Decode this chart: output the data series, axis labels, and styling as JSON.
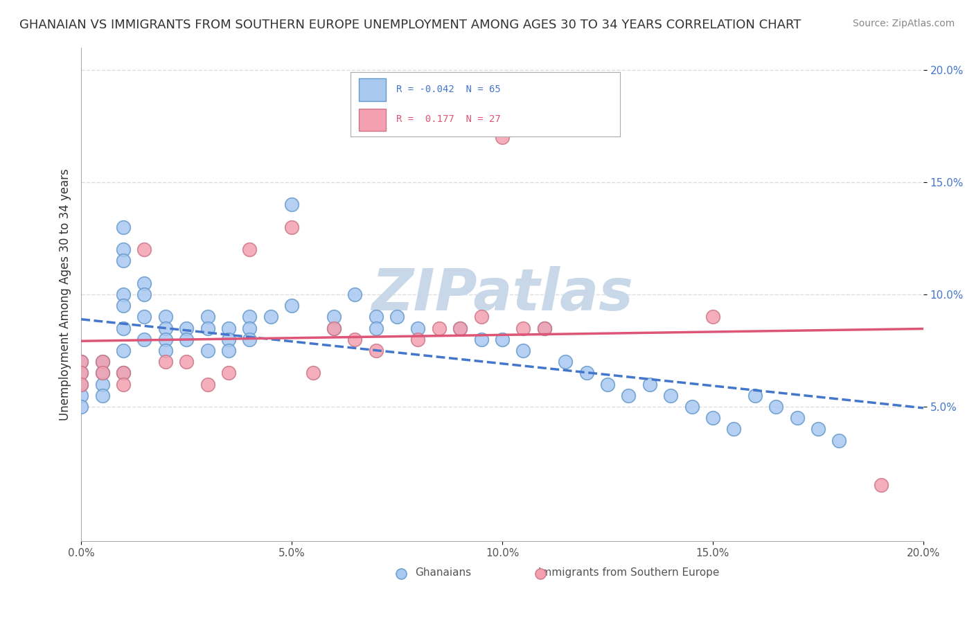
{
  "title": "GHANAIAN VS IMMIGRANTS FROM SOUTHERN EUROPE UNEMPLOYMENT AMONG AGES 30 TO 34 YEARS CORRELATION CHART",
  "source": "Source: ZipAtlas.com",
  "xlabel": "",
  "ylabel": "Unemployment Among Ages 30 to 34 years",
  "xlim": [
    0.0,
    0.2
  ],
  "ylim": [
    -0.01,
    0.21
  ],
  "xticks": [
    0.0,
    0.05,
    0.1,
    0.15,
    0.2
  ],
  "xticklabels": [
    "0.0%",
    "5.0%",
    "10.0%",
    "15.0%",
    "20.0%"
  ],
  "yticks": [
    0.05,
    0.1,
    0.15,
    0.2
  ],
  "yticklabels": [
    "5.0%",
    "10.0%",
    "15.0%",
    "20.0%"
  ],
  "legend_entries": [
    {
      "label": "R = -0.042  N = 65",
      "color": "#a8c8f0"
    },
    {
      "label": "R =  0.177  N = 27",
      "color": "#f4a0b0"
    }
  ],
  "ghanaian_color": "#a8c8f0",
  "ghanaian_edge": "#6699cc",
  "southern_europe_color": "#f4a0b0",
  "southern_europe_edge": "#cc7788",
  "blue_line_color": "#4477cc",
  "pink_line_color": "#dd5577",
  "watermark": "ZIPatlas",
  "watermark_color": "#c8d8e8",
  "background_color": "#ffffff",
  "grid_color": "#dddddd",
  "ghanaian_x": [
    0.0,
    0.0,
    0.0,
    0.0,
    0.0,
    0.005,
    0.005,
    0.005,
    0.005,
    0.01,
    0.01,
    0.01,
    0.01,
    0.01,
    0.01,
    0.01,
    0.01,
    0.015,
    0.015,
    0.015,
    0.015,
    0.02,
    0.02,
    0.02,
    0.02,
    0.025,
    0.025,
    0.03,
    0.03,
    0.03,
    0.035,
    0.035,
    0.035,
    0.04,
    0.04,
    0.04,
    0.045,
    0.05,
    0.05,
    0.06,
    0.06,
    0.065,
    0.07,
    0.07,
    0.075,
    0.08,
    0.09,
    0.095,
    0.1,
    0.105,
    0.11,
    0.115,
    0.12,
    0.125,
    0.13,
    0.135,
    0.14,
    0.145,
    0.15,
    0.155,
    0.16,
    0.165,
    0.17,
    0.175,
    0.18
  ],
  "ghanaian_y": [
    0.07,
    0.065,
    0.06,
    0.055,
    0.05,
    0.07,
    0.065,
    0.06,
    0.055,
    0.13,
    0.12,
    0.115,
    0.1,
    0.095,
    0.085,
    0.075,
    0.065,
    0.105,
    0.1,
    0.09,
    0.08,
    0.09,
    0.085,
    0.08,
    0.075,
    0.085,
    0.08,
    0.09,
    0.085,
    0.075,
    0.085,
    0.08,
    0.075,
    0.09,
    0.085,
    0.08,
    0.09,
    0.14,
    0.095,
    0.085,
    0.09,
    0.1,
    0.09,
    0.085,
    0.09,
    0.085,
    0.085,
    0.08,
    0.08,
    0.075,
    0.085,
    0.07,
    0.065,
    0.06,
    0.055,
    0.06,
    0.055,
    0.05,
    0.045,
    0.04,
    0.055,
    0.05,
    0.045,
    0.04,
    0.035
  ],
  "southern_x": [
    0.0,
    0.0,
    0.0,
    0.005,
    0.005,
    0.01,
    0.01,
    0.015,
    0.02,
    0.025,
    0.03,
    0.035,
    0.04,
    0.05,
    0.055,
    0.06,
    0.065,
    0.07,
    0.08,
    0.085,
    0.09,
    0.095,
    0.1,
    0.105,
    0.11,
    0.15,
    0.19
  ],
  "southern_y": [
    0.07,
    0.065,
    0.06,
    0.07,
    0.065,
    0.065,
    0.06,
    0.12,
    0.07,
    0.07,
    0.06,
    0.065,
    0.12,
    0.13,
    0.065,
    0.085,
    0.08,
    0.075,
    0.08,
    0.085,
    0.085,
    0.09,
    0.17,
    0.085,
    0.085,
    0.09,
    0.015
  ]
}
